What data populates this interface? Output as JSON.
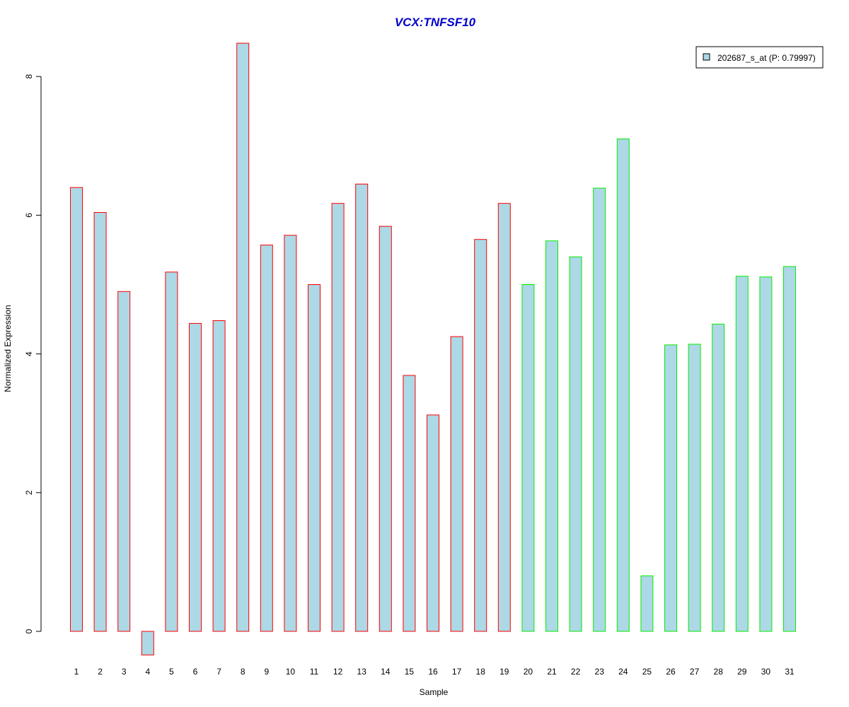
{
  "chart_data": {
    "type": "bar",
    "title": "VCX:TNFSF10",
    "xlabel": "Sample",
    "ylabel": "Normalized Expression",
    "ylim": [
      -0.5,
      8.5
    ],
    "yticks": [
      "0",
      "2",
      "4",
      "6",
      "8"
    ],
    "grid": false,
    "legend_position": "top-right",
    "categories": [
      "1",
      "2",
      "3",
      "4",
      "5",
      "6",
      "7",
      "8",
      "9",
      "10",
      "11",
      "12",
      "13",
      "14",
      "15",
      "16",
      "17",
      "18",
      "19",
      "20",
      "21",
      "22",
      "23",
      "24",
      "25",
      "26",
      "27",
      "28",
      "29",
      "30",
      "31"
    ],
    "series": [
      {
        "name": "202687_s_at (P: 0.79997)",
        "fill": "#add8e6",
        "values": [
          6.4,
          6.04,
          4.9,
          -0.34,
          5.18,
          4.44,
          4.48,
          8.48,
          5.57,
          5.71,
          5.0,
          6.17,
          6.45,
          5.84,
          3.69,
          3.12,
          4.25,
          5.65,
          6.17,
          5.0,
          5.63,
          5.4,
          6.39,
          7.1,
          0.8,
          4.13,
          4.14,
          4.43,
          5.12,
          5.11,
          5.26
        ]
      }
    ],
    "groups": [
      {
        "samples_from": 1,
        "samples_to": 19,
        "outline": "#ff0000"
      },
      {
        "samples_from": 20,
        "samples_to": 31,
        "outline": "#00ee00"
      }
    ]
  }
}
